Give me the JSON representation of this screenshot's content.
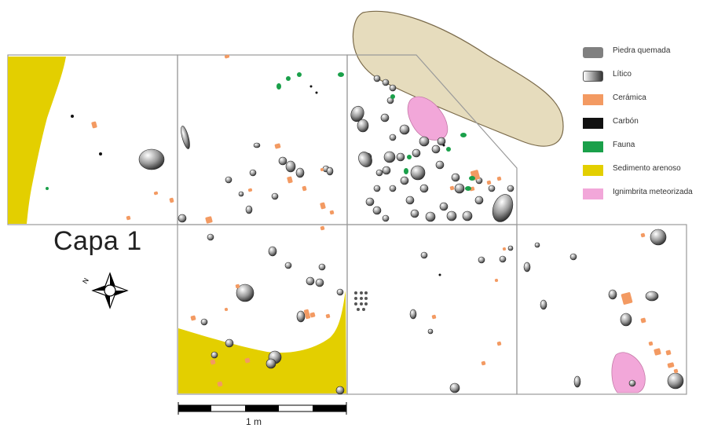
{
  "map": {
    "layer_label": "Capa 1",
    "scale_label": "1 m",
    "north_label": "N"
  },
  "legend": {
    "items": [
      {
        "label": "Piedra quemada",
        "color": "#808080",
        "icon": "burned-stone"
      },
      {
        "label": "Lítico",
        "color": "#b9b9b9",
        "icon": "lithic-gradient"
      },
      {
        "label": "Cerámica",
        "color": "#f39a62",
        "icon": "ceramic"
      },
      {
        "label": "Carbón",
        "color": "#111111",
        "icon": "charcoal"
      },
      {
        "label": "Fauna",
        "color": "#1aa04a",
        "icon": "fauna"
      },
      {
        "label": "Sedimento arenoso",
        "color": "#e3cf00",
        "icon": "sandy-sediment"
      },
      {
        "label": "Ignimbrita meteorizada",
        "color": "#f2a7d9",
        "icon": "weathered-ignimbrite"
      }
    ]
  },
  "colors": {
    "grid_line": "#9a9a9a",
    "tan_boulder": "#e6dcbd",
    "tan_boulder_stroke": "#7a6a4a"
  }
}
